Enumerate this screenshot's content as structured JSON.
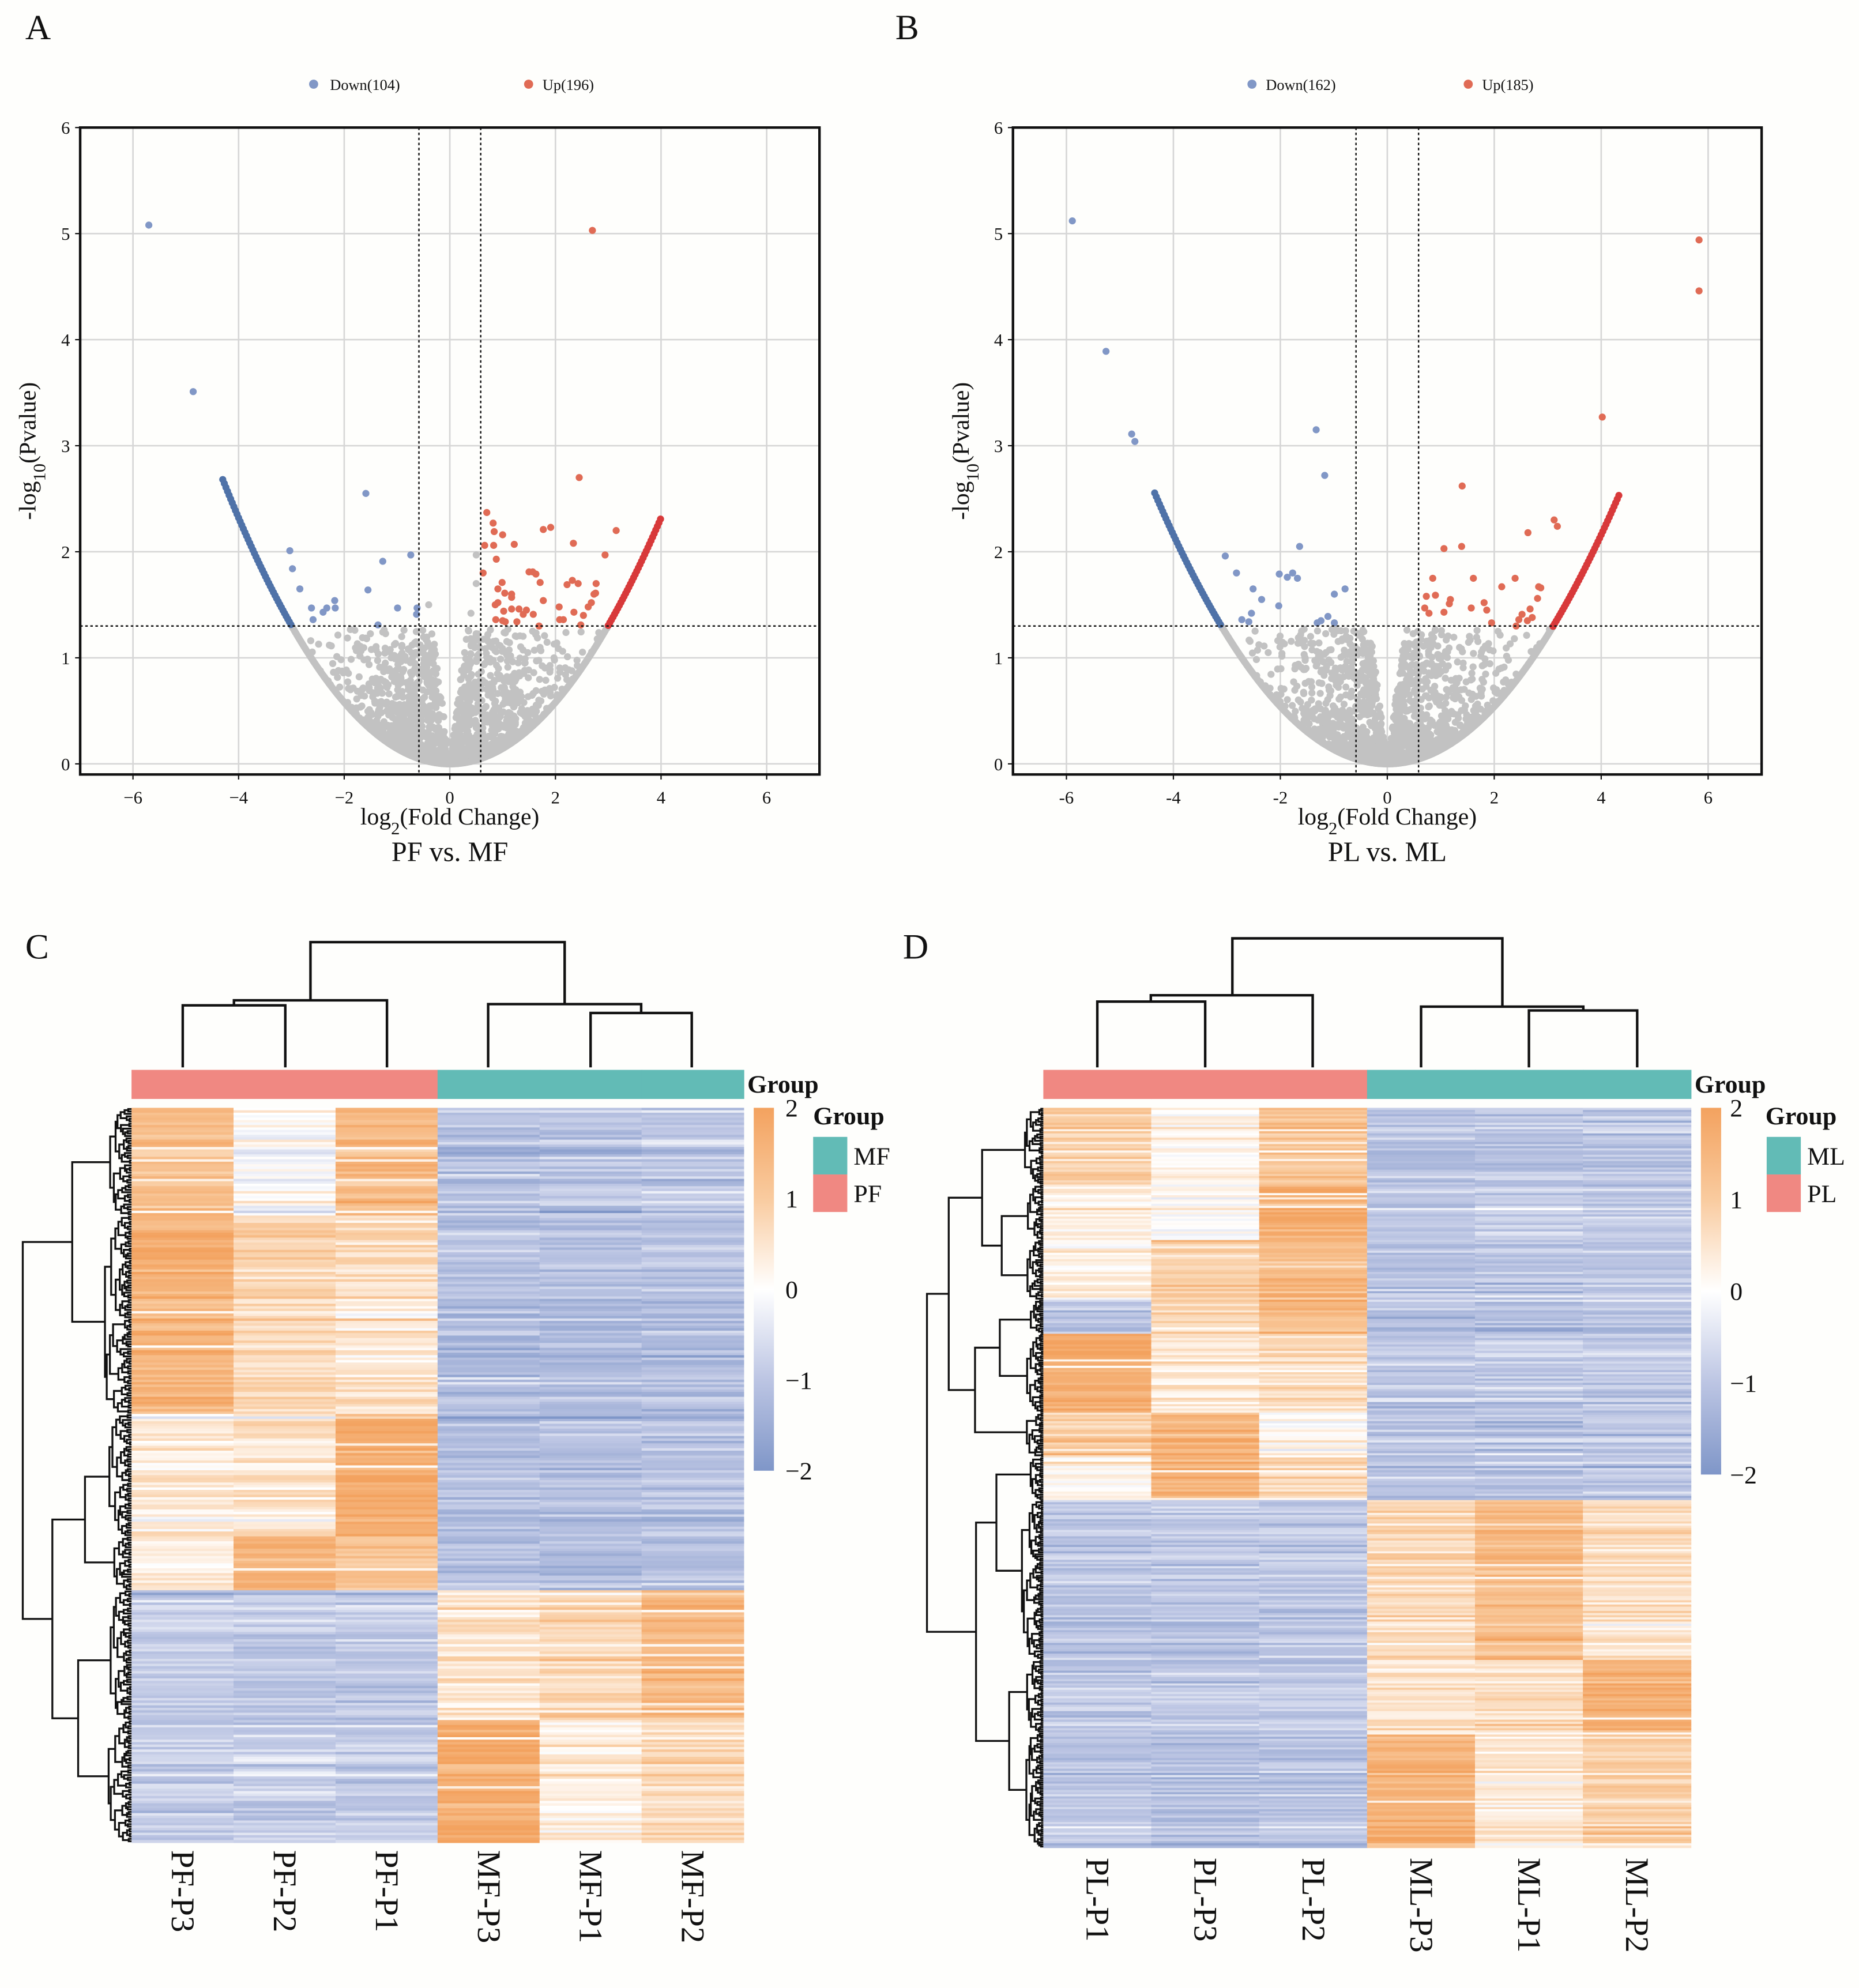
{
  "panel_labels": {
    "a": "A",
    "b": "B",
    "c": "C",
    "d": "D"
  },
  "chart_data": [
    {
      "type": "scatter",
      "subtype": "volcano",
      "panel_label": "A",
      "title": "PF vs. MF",
      "xlabel": {
        "prefix": "log",
        "sub": "2",
        "suffix": "(Fold Change)"
      },
      "ylabel": {
        "prefix": "-log",
        "sub": "10",
        "suffix": "(Pvalue)"
      },
      "xlim": [
        -7,
        7
      ],
      "ylim": [
        -0.1,
        6
      ],
      "xticks": [
        -6,
        -4,
        -2,
        0,
        2,
        4,
        6
      ],
      "xtick_labels": [
        "−6",
        "−4",
        "−2",
        "0",
        "2",
        "4",
        "6"
      ],
      "yticks": [
        0,
        1,
        2,
        3,
        4,
        5,
        6
      ],
      "ytick_labels": [
        "0",
        "1",
        "2",
        "3",
        "4",
        "5",
        "6"
      ],
      "grid": true,
      "legend_position": "top",
      "legend": [
        {
          "label": "Down(104)",
          "color": "#8197c6"
        },
        {
          "label": "Up(196)",
          "color": "#e06b55"
        }
      ],
      "thresholds": {
        "log2fc": [
          -0.585,
          0.585
        ],
        "neg_log10_p": 1.3
      },
      "colors": {
        "down": "#8197c6",
        "up": "#e06b55",
        "ns": "#c2c2c2",
        "down_curve": "#4f72a8",
        "up_curve": "#d8393a"
      },
      "curve": {
        "coef": 0.145,
        "down_x_range": [
          -4.3,
          -3.0
        ],
        "up_x_range": [
          3.0,
          4.0
        ]
      },
      "ns_cloud_count": 1500,
      "down_points": [
        [
          -5.7,
          5.08
        ],
        [
          -4.86,
          3.51
        ],
        [
          -1.59,
          2.55
        ],
        [
          -3.03,
          2.01
        ],
        [
          -2.98,
          1.84
        ],
        [
          -2.84,
          1.65
        ],
        [
          -1.55,
          1.64
        ],
        [
          -1.27,
          1.91
        ],
        [
          -0.74,
          1.97
        ],
        [
          -2.62,
          1.47
        ],
        [
          -2.33,
          1.47
        ],
        [
          -2.18,
          1.54
        ],
        [
          -2.17,
          1.47
        ],
        [
          -2.4,
          1.43
        ],
        [
          -2.59,
          1.36
        ],
        [
          -1.36,
          1.31
        ],
        [
          -0.99,
          1.47
        ],
        [
          -0.62,
          1.47
        ],
        [
          -0.63,
          1.41
        ]
      ],
      "up_points": [
        [
          2.7,
          5.03
        ],
        [
          2.45,
          2.7
        ],
        [
          0.7,
          2.37
        ],
        [
          0.82,
          2.27
        ],
        [
          0.84,
          2.19
        ],
        [
          1.0,
          2.16
        ],
        [
          1.22,
          2.07
        ],
        [
          0.66,
          2.06
        ],
        [
          0.83,
          2.06
        ],
        [
          1.77,
          2.21
        ],
        [
          1.91,
          2.23
        ],
        [
          2.34,
          2.08
        ],
        [
          3.15,
          2.2
        ],
        [
          2.94,
          1.97
        ],
        [
          0.88,
          1.93
        ],
        [
          0.63,
          1.8
        ],
        [
          1.5,
          1.81
        ],
        [
          1.57,
          1.81
        ],
        [
          1.63,
          1.79
        ],
        [
          0.99,
          1.71
        ],
        [
          1.71,
          1.71
        ],
        [
          2.32,
          1.73
        ],
        [
          2.22,
          1.69
        ],
        [
          2.43,
          1.7
        ],
        [
          2.77,
          1.7
        ],
        [
          0.91,
          1.65
        ],
        [
          1.04,
          1.61
        ],
        [
          1.17,
          1.6
        ],
        [
          2.73,
          1.6
        ],
        [
          2.76,
          1.61
        ],
        [
          1.17,
          1.57
        ],
        [
          0.91,
          1.52
        ],
        [
          0.86,
          1.5
        ],
        [
          1.77,
          1.54
        ],
        [
          2.62,
          1.48
        ],
        [
          2.68,
          1.52
        ],
        [
          1.02,
          1.44
        ],
        [
          1.17,
          1.46
        ],
        [
          1.31,
          1.46
        ],
        [
          1.45,
          1.45
        ],
        [
          2.07,
          1.48
        ],
        [
          1.39,
          1.41
        ],
        [
          1.58,
          1.41
        ],
        [
          2.35,
          1.43
        ],
        [
          2.53,
          1.4
        ],
        [
          0.87,
          1.36
        ],
        [
          1.0,
          1.35
        ],
        [
          1.05,
          1.34
        ],
        [
          1.27,
          1.34
        ],
        [
          2.08,
          1.36
        ],
        [
          2.15,
          1.36
        ],
        [
          1.69,
          1.3
        ],
        [
          2.48,
          1.31
        ]
      ],
      "ns_points_above_threshold": [
        [
          0.5,
          1.97
        ],
        [
          0.5,
          1.7
        ],
        [
          -0.4,
          1.5
        ],
        [
          0.4,
          1.42
        ]
      ]
    },
    {
      "type": "scatter",
      "subtype": "volcano",
      "panel_label": "B",
      "title": "PL vs. ML",
      "xlabel": {
        "prefix": "log",
        "sub": "2",
        "suffix": "(Fold Change)"
      },
      "ylabel": {
        "prefix": "-log",
        "sub": "10",
        "suffix": "(Pvalue)"
      },
      "xlim": [
        -7,
        7
      ],
      "ylim": [
        -0.1,
        6
      ],
      "xticks": [
        -6,
        -4,
        -2,
        0,
        2,
        4,
        6
      ],
      "xtick_labels": [
        "-6",
        "-4",
        "-2",
        "0",
        "2",
        "4",
        "6"
      ],
      "yticks": [
        0,
        1,
        2,
        3,
        4,
        5,
        6
      ],
      "ytick_labels": [
        "0",
        "1",
        "2",
        "3",
        "4",
        "5",
        "6"
      ],
      "grid": true,
      "legend_position": "top",
      "legend": [
        {
          "label": "Down(162)",
          "color": "#8197c6"
        },
        {
          "label": "Up(185)",
          "color": "#e06b55"
        }
      ],
      "thresholds": {
        "log2fc": [
          -0.585,
          0.585
        ],
        "neg_log10_p": 1.3
      },
      "colors": {
        "down": "#8197c6",
        "up": "#e06b55",
        "ns": "#c2c2c2",
        "down_curve": "#4f72a8",
        "up_curve": "#d8393a"
      },
      "curve": {
        "coef": 0.135,
        "down_x_range": [
          -4.35,
          -3.1
        ],
        "up_x_range": [
          3.1,
          4.35
        ]
      },
      "ns_cloud_count": 1500,
      "down_points": [
        [
          -5.89,
          5.12
        ],
        [
          -5.26,
          3.89
        ],
        [
          -4.78,
          3.11
        ],
        [
          -4.72,
          3.04
        ],
        [
          -1.33,
          3.15
        ],
        [
          -1.17,
          2.72
        ],
        [
          -1.64,
          2.05
        ],
        [
          -3.03,
          1.96
        ],
        [
          -2.82,
          1.8
        ],
        [
          -2.02,
          1.79
        ],
        [
          -1.87,
          1.76
        ],
        [
          -1.77,
          1.8
        ],
        [
          -1.68,
          1.75
        ],
        [
          -2.51,
          1.65
        ],
        [
          -0.99,
          1.6
        ],
        [
          -0.79,
          1.65
        ],
        [
          -2.35,
          1.55
        ],
        [
          -2.03,
          1.49
        ],
        [
          -2.54,
          1.42
        ],
        [
          -2.72,
          1.36
        ],
        [
          -2.59,
          1.34
        ],
        [
          -1.11,
          1.39
        ],
        [
          -1.24,
          1.35
        ],
        [
          -1.31,
          1.33
        ],
        [
          -0.99,
          1.33
        ]
      ],
      "up_points": [
        [
          5.83,
          4.94
        ],
        [
          5.83,
          4.46
        ],
        [
          4.02,
          3.27
        ],
        [
          1.4,
          2.62
        ],
        [
          3.12,
          2.3
        ],
        [
          3.18,
          2.24
        ],
        [
          2.63,
          2.18
        ],
        [
          1.06,
          2.03
        ],
        [
          1.39,
          2.05
        ],
        [
          0.85,
          1.75
        ],
        [
          1.61,
          1.75
        ],
        [
          2.39,
          1.75
        ],
        [
          2.14,
          1.67
        ],
        [
          2.83,
          1.67
        ],
        [
          2.87,
          1.66
        ],
        [
          0.73,
          1.58
        ],
        [
          0.9,
          1.59
        ],
        [
          1.18,
          1.55
        ],
        [
          1.16,
          1.51
        ],
        [
          2.81,
          1.56
        ],
        [
          0.7,
          1.47
        ],
        [
          0.78,
          1.42
        ],
        [
          1.06,
          1.43
        ],
        [
          1.57,
          1.47
        ],
        [
          1.81,
          1.52
        ],
        [
          1.86,
          1.45
        ],
        [
          2.67,
          1.46
        ],
        [
          2.52,
          1.41
        ],
        [
          2.46,
          1.36
        ],
        [
          2.71,
          1.38
        ],
        [
          1.95,
          1.33
        ],
        [
          2.62,
          1.35
        ],
        [
          2.41,
          1.3
        ]
      ],
      "ns_points_above_threshold": []
    },
    {
      "type": "heatmap",
      "panel_label": "C",
      "columns": [
        "PF-P3",
        "PF-P2",
        "PF-P1",
        "MF-P3",
        "MF-P1",
        "MF-P2"
      ],
      "column_groups": [
        "PF",
        "PF",
        "PF",
        "MF",
        "MF",
        "MF"
      ],
      "group_colors": {
        "MF": "#62bbb6",
        "PF": "#f08882"
      },
      "annotation_title": "Group",
      "legend_title": "Group",
      "legend_items": [
        "MF",
        "PF"
      ],
      "colorbar": {
        "range": [
          -2,
          2
        ],
        "ticks": [
          2,
          1,
          0,
          -1,
          -2
        ],
        "tick_labels": [
          "2",
          "1",
          "0",
          "−1",
          "−2"
        ],
        "stops": [
          {
            "value": -2,
            "color": "#7f96c8"
          },
          {
            "value": -1,
            "color": "#bcc5e3"
          },
          {
            "value": 0,
            "color": "#ffffff"
          },
          {
            "value": 1,
            "color": "#f9cb9f"
          },
          {
            "value": 2,
            "color": "#f3a25f"
          }
        ]
      },
      "total_rows": 300,
      "row_blocks": [
        {
          "rows": 44,
          "means": [
            1.3,
            0.0,
            1.4,
            -1.05,
            -1.0,
            -0.85
          ]
        },
        {
          "rows": 81,
          "means": [
            1.6,
            0.8,
            0.6,
            -1.1,
            -1.1,
            -1.05
          ]
        },
        {
          "rows": 50,
          "means": [
            0.4,
            0.5,
            1.8,
            -1.1,
            -1.05,
            -1.0
          ]
        },
        {
          "rows": 22,
          "means": [
            0.3,
            1.6,
            1.2,
            -1.1,
            -1.1,
            -1.05
          ]
        },
        {
          "rows": 53,
          "means": [
            -0.9,
            -0.95,
            -0.95,
            0.6,
            0.8,
            1.4
          ]
        },
        {
          "rows": 50,
          "means": [
            -0.9,
            -0.85,
            -0.9,
            1.7,
            0.3,
            0.7
          ]
        }
      ]
    },
    {
      "type": "heatmap",
      "panel_label": "D",
      "columns": [
        "PL-P1",
        "PL-P3",
        "PL-P2",
        "ML-P3",
        "ML-P1",
        "ML-P2"
      ],
      "column_groups": [
        "PL",
        "PL",
        "PL",
        "ML",
        "ML",
        "ML"
      ],
      "group_colors": {
        "ML": "#62bbb6",
        "PL": "#f08882"
      },
      "annotation_title": "Group",
      "legend_title": "Group",
      "legend_items": [
        "ML",
        "PL"
      ],
      "colorbar": {
        "range": [
          -2,
          2
        ],
        "ticks": [
          2,
          1,
          0,
          -1,
          -2
        ],
        "tick_labels": [
          "2",
          "1",
          "0",
          "−1",
          "−2"
        ],
        "stops": [
          {
            "value": -2,
            "color": "#7f96c8"
          },
          {
            "value": -1,
            "color": "#bcc5e3"
          },
          {
            "value": 0,
            "color": "#ffffff"
          },
          {
            "value": 1,
            "color": "#f9cb9f"
          },
          {
            "value": 2,
            "color": "#f3a25f"
          }
        ]
      },
      "total_rows": 347,
      "row_blocks": [
        {
          "rows": 36,
          "means": [
            1.0,
            0.2,
            1.2,
            -1.0,
            -1.0,
            -0.95
          ]
        },
        {
          "rows": 26,
          "means": [
            0.3,
            0.0,
            1.7,
            -1.0,
            -0.95,
            -1.0
          ]
        },
        {
          "rows": 28,
          "means": [
            0.2,
            0.9,
            1.3,
            -1.05,
            -1.0,
            -1.0
          ]
        },
        {
          "rows": 16,
          "means": [
            -0.9,
            0.8,
            1.6,
            -0.95,
            -1.0,
            -0.9
          ]
        },
        {
          "rows": 37,
          "means": [
            1.7,
            0.4,
            0.6,
            -1.0,
            -0.95,
            -0.95
          ]
        },
        {
          "rows": 21,
          "means": [
            0.9,
            1.5,
            0.1,
            -1.05,
            -1.0,
            -1.0
          ]
        },
        {
          "rows": 20,
          "means": [
            0.2,
            1.6,
            0.8,
            -1.0,
            -1.0,
            -1.0
          ]
        },
        {
          "rows": 75,
          "means": [
            -1.0,
            -1.0,
            -0.95,
            0.7,
            1.3,
            0.6
          ]
        },
        {
          "rows": 34,
          "means": [
            -1.0,
            -1.0,
            -1.0,
            0.5,
            0.6,
            1.6
          ]
        },
        {
          "rows": 54,
          "means": [
            -1.0,
            -1.05,
            -1.0,
            1.6,
            0.4,
            0.9
          ]
        }
      ]
    }
  ]
}
